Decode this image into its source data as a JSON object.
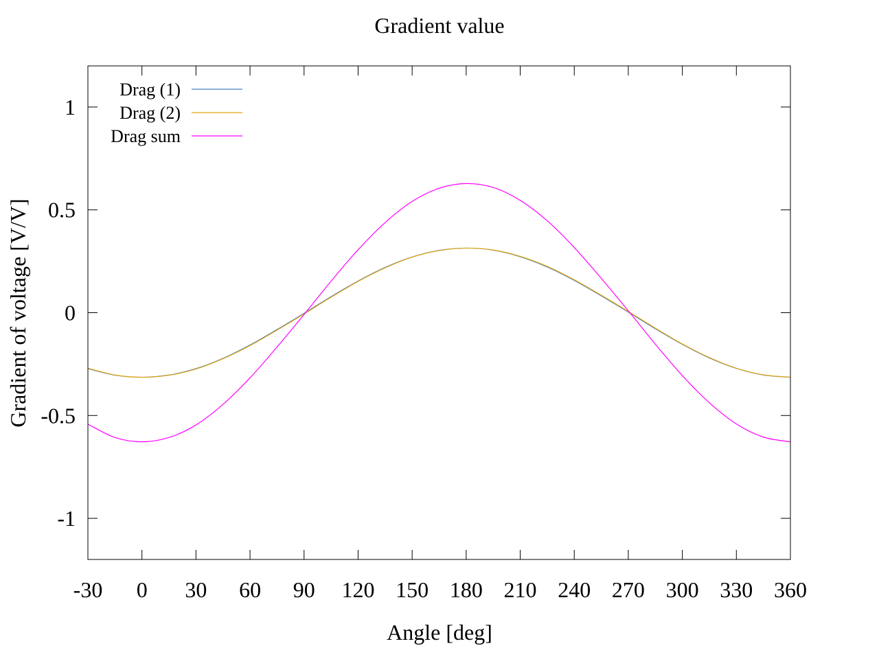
{
  "chart_data": {
    "type": "line",
    "title": "Gradient value",
    "xlabel": "Angle [deg]",
    "ylabel": "Gradient of voltage [V/V]",
    "xlim": [
      -30,
      360
    ],
    "ylim": [
      -1.2,
      1.2
    ],
    "xticks": [
      -30,
      0,
      30,
      60,
      90,
      120,
      150,
      180,
      210,
      240,
      270,
      300,
      330,
      360
    ],
    "xtick_labels": [
      "-30",
      "0",
      "30",
      "60",
      "90",
      "120",
      "150",
      "180",
      "210",
      "240",
      "270",
      "300",
      "330",
      "360"
    ],
    "yticks": [
      1,
      0.5,
      0,
      -0.5,
      -1
    ],
    "ytick_labels": [
      "1",
      "0.5",
      "0",
      "-0.5",
      "-1"
    ],
    "grid": false,
    "legend_position": "top-left",
    "x": [
      -30,
      -15,
      0,
      15,
      30,
      45,
      60,
      75,
      90,
      105,
      120,
      135,
      150,
      165,
      180,
      195,
      210,
      225,
      240,
      255,
      270,
      285,
      300,
      315,
      330,
      345,
      360
    ],
    "series": [
      {
        "name": "Drag (1)",
        "color": "#4a7fc1",
        "values": [
          -0.272,
          -0.304,
          -0.314,
          -0.303,
          -0.272,
          -0.222,
          -0.157,
          -0.082,
          -0.003,
          0.078,
          0.154,
          0.22,
          0.271,
          0.303,
          0.314,
          0.304,
          0.272,
          0.222,
          0.157,
          0.082,
          0.003,
          -0.078,
          -0.154,
          -0.22,
          -0.271,
          -0.303,
          -0.314
        ]
      },
      {
        "name": "Drag (2)",
        "color": "#e2a50c",
        "values": [
          -0.27,
          -0.303,
          -0.314,
          -0.304,
          -0.274,
          -0.224,
          -0.16,
          -0.085,
          -0.006,
          0.075,
          0.152,
          0.218,
          0.27,
          0.302,
          0.314,
          0.305,
          0.274,
          0.225,
          0.16,
          0.085,
          0.006,
          -0.075,
          -0.152,
          -0.218,
          -0.27,
          -0.302,
          -0.314
        ]
      },
      {
        "name": "Drag sum",
        "color": "#ff00ff",
        "values": [
          -0.542,
          -0.607,
          -0.628,
          -0.607,
          -0.546,
          -0.446,
          -0.317,
          -0.167,
          -0.009,
          0.153,
          0.306,
          0.438,
          0.541,
          0.605,
          0.628,
          0.609,
          0.546,
          0.447,
          0.317,
          0.167,
          0.009,
          -0.153,
          -0.306,
          -0.438,
          -0.541,
          -0.605,
          -0.628
        ]
      }
    ]
  }
}
